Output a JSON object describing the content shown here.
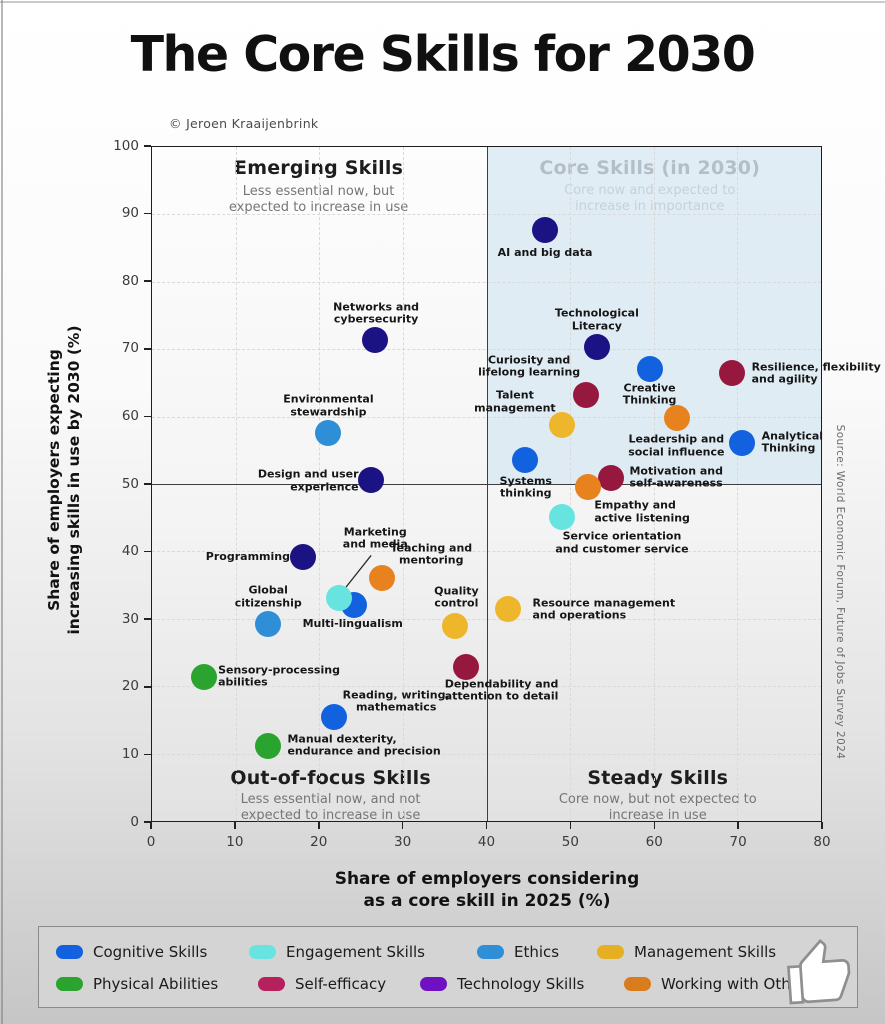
{
  "page": {
    "title": "The Core Skills for 2030",
    "copyright": "© Jeroen Kraaijenbrink",
    "source_note": "Source: World Economic Forum, Future of Jobs Survey 2024"
  },
  "chart_data": {
    "type": "scatter",
    "title": "The Core Skills for 2030",
    "xlabel": "Share of employers considering\nas a core skill in 2025 (%)",
    "ylabel": "Share of employers expecting\nincreasing skills in use by 2030 (%)",
    "xlim": [
      0,
      80
    ],
    "ylim": [
      0,
      100
    ],
    "x_ticks": [
      0,
      10,
      20,
      30,
      40,
      50,
      60,
      70,
      80
    ],
    "y_ticks": [
      0,
      10,
      20,
      30,
      40,
      50,
      60,
      70,
      80,
      90,
      100
    ],
    "grid": "dashed",
    "legend_position": "bottom",
    "quadrant_split": {
      "x": 40,
      "y": 50
    },
    "quadrant_tint_color": "#d9e9f3",
    "quadrants": [
      {
        "id": "emerging",
        "title": "Emerging Skills",
        "subtitle": "Less essential now, but\nexpected to increase in use"
      },
      {
        "id": "core",
        "title": "Core Skills (in 2030)",
        "subtitle": "Core now and expected to\nincrease in importance"
      },
      {
        "id": "out_of_focus",
        "title": "Out-of-focus Skills",
        "subtitle": "Less essential now, and not\nexpected to increase in use"
      },
      {
        "id": "steady",
        "title": "Steady Skills",
        "subtitle": "Core now, but not expected to\nincrease in use"
      }
    ],
    "categories": {
      "cognitive": {
        "label": "Cognitive Skills",
        "color": "#1261DE",
        "legend_color": "#1261DE"
      },
      "engagement": {
        "label": "Engagement Skills",
        "color": "#67E4E0",
        "legend_color": "#67E4E0"
      },
      "ethics": {
        "label": "Ethics",
        "color": "#2E8FD6",
        "legend_color": "#2E8FD6"
      },
      "management": {
        "label": "Management Skills",
        "color": "#EEB62B",
        "legend_color": "#E4B021"
      },
      "physical": {
        "label": "Physical Abilities",
        "color": "#2BA32F",
        "legend_color": "#2BA32F"
      },
      "self_efficacy": {
        "label": "Self-efficacy",
        "color": "#96183F",
        "legend_color": "#B5215D"
      },
      "technology": {
        "label": "Technology Skills",
        "color": "#1B1283",
        "legend_color": "#6E11C2"
      },
      "working": {
        "label": "Working with Others",
        "color": "#E8821E",
        "legend_color": "#D87C1E"
      }
    },
    "points": [
      {
        "label": "AI and big data",
        "category": "technology",
        "x": 47,
        "y": 87.7,
        "lx": 47,
        "ly": 84.2,
        "align": "center"
      },
      {
        "label": "Networks and\ncybersecurity",
        "category": "technology",
        "x": 26.7,
        "y": 71.4,
        "lx": 26.8,
        "ly": 75.2,
        "align": "center"
      },
      {
        "label": "Technological\nLiteracy",
        "category": "technology",
        "x": 53.2,
        "y": 70.4,
        "lx": 53.2,
        "ly": 74.3,
        "align": "center"
      },
      {
        "label": "Creative\nThinking",
        "category": "cognitive",
        "x": 59.5,
        "y": 67,
        "lx": 59.5,
        "ly": 63.2,
        "align": "center"
      },
      {
        "label": "Resilience, flexibility\nand agility",
        "category": "self_efficacy",
        "x": 69.3,
        "y": 66.4,
        "lx": 71.7,
        "ly": 66.3,
        "align": "left"
      },
      {
        "label": "Curiosity and\nlifelong learning",
        "category": "self_efficacy",
        "x": 51.9,
        "y": 63.2,
        "lx": 45.1,
        "ly": 67.4,
        "align": "center"
      },
      {
        "label": "Talent\nmanagement",
        "category": "management",
        "x": 49,
        "y": 58.7,
        "lx": 43.4,
        "ly": 62.1,
        "align": "center"
      },
      {
        "label": "Leadership and\nsocial influence",
        "category": "working",
        "x": 62.8,
        "y": 59.8,
        "lx": 62.7,
        "ly": 55.6,
        "align": "center"
      },
      {
        "label": "Analytical\nThinking",
        "category": "cognitive",
        "x": 70.6,
        "y": 56.1,
        "lx": 72.9,
        "ly": 56.1,
        "align": "left"
      },
      {
        "label": "Environmental\nstewardship",
        "category": "ethics",
        "x": 21.1,
        "y": 57.5,
        "lx": 21.1,
        "ly": 61.5,
        "align": "center"
      },
      {
        "label": "Systems\nthinking",
        "category": "cognitive",
        "x": 44.6,
        "y": 53.6,
        "lx": 44.7,
        "ly": 49.4,
        "align": "center"
      },
      {
        "label": "Design and user\nexperience",
        "category": "technology",
        "x": 26.2,
        "y": 50.6,
        "lx": 24.7,
        "ly": 50.4,
        "align": "right"
      },
      {
        "label": "Motivation and\nself-awareness",
        "category": "self_efficacy",
        "x": 54.9,
        "y": 50.9,
        "lx": 57.1,
        "ly": 50.9,
        "align": "left"
      },
      {
        "label": "Empathy and\nactive listening",
        "category": "working",
        "x": 52.1,
        "y": 49.6,
        "lx": 52.9,
        "ly": 45.8,
        "align": "left"
      },
      {
        "label": "Service orientation\nand customer service",
        "category": "engagement",
        "x": 49,
        "y": 45.1,
        "lx": 56.2,
        "ly": 41.2,
        "align": "center"
      },
      {
        "label": "Programming",
        "category": "technology",
        "x": 18.1,
        "y": 39.1,
        "lx": 16.5,
        "ly": 39.2,
        "align": "right"
      },
      {
        "label": "Multi-lingualism",
        "category": "cognitive",
        "x": 24.2,
        "y": 32.1,
        "lx": 24,
        "ly": 29.2,
        "align": "center"
      },
      {
        "label": "Marketing\nand media",
        "category": "engagement",
        "x": 22.4,
        "y": 33.1,
        "lx": 26.7,
        "ly": 41.9,
        "align": "center",
        "connector": {
          "x1": 26.2,
          "y1": 39.4,
          "x2": 23.2,
          "y2": 34.7
        }
      },
      {
        "label": "Teaching and\nmentoring",
        "category": "working",
        "x": 27.5,
        "y": 36.1,
        "lx": 33.4,
        "ly": 39.5,
        "align": "center"
      },
      {
        "label": "Global\ncitizenship",
        "category": "ethics",
        "x": 13.9,
        "y": 29.3,
        "lx": 13.9,
        "ly": 33.2,
        "align": "center"
      },
      {
        "label": "Quality\ncontrol",
        "category": "management",
        "x": 36.2,
        "y": 29,
        "lx": 36.4,
        "ly": 33.1,
        "align": "center"
      },
      {
        "label": "Resource management\nand operations",
        "category": "management",
        "x": 42.6,
        "y": 31.5,
        "lx": 45.5,
        "ly": 31.3,
        "align": "left"
      },
      {
        "label": "Dependability and\nattention to detail",
        "category": "self_efficacy",
        "x": 37.6,
        "y": 22.9,
        "lx": 41.8,
        "ly": 19.3,
        "align": "center"
      },
      {
        "label": "Sensory-processing\nabilities",
        "category": "physical",
        "x": 6.2,
        "y": 21.4,
        "lx": 7.9,
        "ly": 21.4,
        "align": "left"
      },
      {
        "label": "Reading, writing,\nmathematics",
        "category": "cognitive",
        "x": 21.8,
        "y": 15.4,
        "lx": 29.2,
        "ly": 17.7,
        "align": "center"
      },
      {
        "label": "Manual dexterity,\nendurance and precision",
        "category": "physical",
        "x": 13.9,
        "y": 11.1,
        "lx": 16.2,
        "ly": 11.2,
        "align": "left"
      }
    ]
  },
  "legend": {
    "order": [
      "cognitive",
      "engagement",
      "ethics",
      "management",
      "physical",
      "self_efficacy",
      "technology",
      "working"
    ]
  }
}
